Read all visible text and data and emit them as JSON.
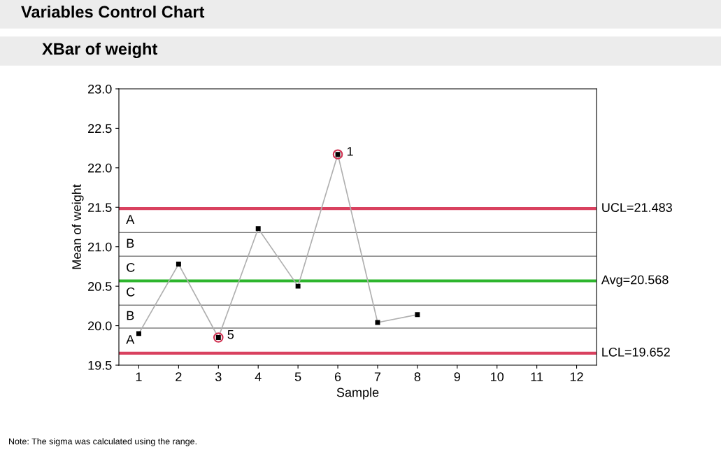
{
  "chart_data": {
    "type": "line",
    "title": "Variables Control Chart",
    "subtitle": "XBar of weight",
    "xlabel": "Sample",
    "ylabel": "Mean of weight",
    "x": [
      1,
      2,
      3,
      4,
      5,
      6,
      7,
      8
    ],
    "series": [
      {
        "color": "#b0b0b0",
        "values": [
          19.9,
          20.78,
          19.85,
          21.23,
          20.5,
          22.17,
          20.04,
          20.14
        ],
        "marker": "square"
      },
      {
        "type": "scatter",
        "color": "#d03050",
        "values": [
          null,
          null,
          19.85,
          null,
          null,
          22.17,
          null,
          null
        ],
        "marker": "circle"
      }
    ],
    "xlim": [
      0.5,
      12.5
    ],
    "xticks": [
      1,
      2,
      3,
      4,
      5,
      6,
      7,
      8,
      9,
      10,
      11,
      12
    ],
    "ylim": [
      19.5,
      23.0
    ],
    "yticks": [
      {
        "value": 19.5,
        "label": "19.5"
      },
      {
        "value": 20.0,
        "label": "20.0"
      },
      {
        "value": 20.5,
        "label": "20.5"
      },
      {
        "value": 21.0,
        "label": "21.0"
      },
      {
        "value": 21.5,
        "label": "21.5"
      },
      {
        "value": 22.0,
        "label": "22.0"
      },
      {
        "value": 22.5,
        "label": "22.5"
      },
      {
        "value": 23.0,
        "label": "23.0"
      }
    ],
    "ref_lines": [
      {
        "axis": "y",
        "value": 21.483,
        "label": "UCL=21.483",
        "color": "#d9415f"
      },
      {
        "axis": "y",
        "value": 20.568,
        "label": "Avg=20.568",
        "color": "#2db52d"
      },
      {
        "axis": "y",
        "value": 19.652,
        "label": "LCL=19.652",
        "color": "#d9415f"
      },
      {
        "axis": "y",
        "value": 21.18,
        "label": null,
        "color": "#808080"
      },
      {
        "axis": "y",
        "value": 20.88,
        "label": null,
        "color": "#808080"
      },
      {
        "axis": "y",
        "value": 20.26,
        "label": null,
        "color": "#808080"
      },
      {
        "axis": "y",
        "value": 19.97,
        "label": null,
        "color": "#808080"
      }
    ],
    "annotations": [
      "A",
      "B",
      "C",
      "C",
      "B",
      "A",
      {
        "text": "1",
        "x": 6,
        "y": 22.17
      },
      {
        "text": "5",
        "x": 3,
        "y": 19.85
      },
      "Note: The sigma was calculated using the range."
    ],
    "grid": false,
    "legend": false
  }
}
